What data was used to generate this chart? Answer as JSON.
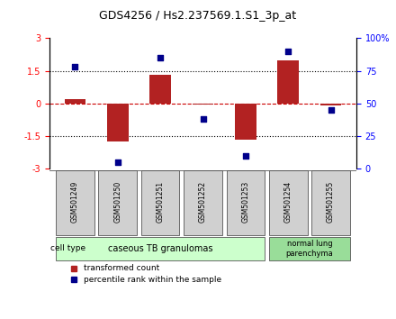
{
  "title": "GDS4256 / Hs2.237569.1.S1_3p_at",
  "samples": [
    "GSM501249",
    "GSM501250",
    "GSM501251",
    "GSM501252",
    "GSM501253",
    "GSM501254",
    "GSM501255"
  ],
  "transformed_count": [
    0.2,
    -1.75,
    1.3,
    -0.05,
    -1.65,
    2.0,
    -0.1
  ],
  "percentile_rank": [
    78,
    5,
    85,
    38,
    10,
    90,
    45
  ],
  "ylim_left": [
    -3,
    3
  ],
  "yticks_left": [
    -3,
    -1.5,
    0,
    1.5,
    3
  ],
  "ytick_labels_left": [
    "-3",
    "-1.5",
    "0",
    "1.5",
    "3"
  ],
  "yticks_right": [
    0,
    25,
    50,
    75,
    100
  ],
  "ytick_labels_right": [
    "0",
    "25",
    "50",
    "75",
    "100%"
  ],
  "bar_color": "#b22222",
  "dot_color": "#00008b",
  "zero_line_color": "#cc0000",
  "dotted_line_color": "#000000",
  "group1_samples": [
    "GSM501249",
    "GSM501250",
    "GSM501251",
    "GSM501252",
    "GSM501253"
  ],
  "group1_label": "caseous TB granulomas",
  "group2_samples": [
    "GSM501254",
    "GSM501255"
  ],
  "group2_label": "normal lung\nparenchyma",
  "group1_color": "#ccffcc",
  "group2_color": "#99dd99",
  "cell_type_label": "cell type",
  "legend_bar_label": "transformed count",
  "legend_dot_label": "percentile rank within the sample",
  "xlabel_rotation": 90
}
